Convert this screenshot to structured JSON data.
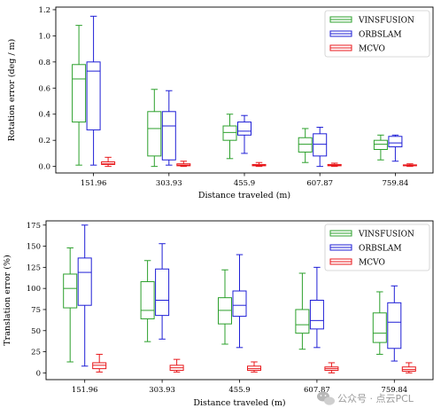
{
  "chart_data": [
    {
      "type": "box",
      "xlabel": "Distance traveled (m)",
      "ylabel": "Rotation error (deg / m)",
      "categories": [
        "151.96",
        "303.93",
        "455.9",
        "607.87",
        "759.84"
      ],
      "ylim": [
        -0.05,
        1.22
      ],
      "yticks": [
        "0.0",
        "0.2",
        "0.4",
        "0.6",
        "0.8",
        "1.0",
        "1.2"
      ],
      "legend_position": "top-right",
      "series": [
        {
          "name": "VINSFUSION",
          "color": "#2ca02c",
          "boxes": [
            {
              "whisker_low": 0.01,
              "q1": 0.34,
              "median": 0.67,
              "q3": 0.78,
              "whisker_high": 1.08
            },
            {
              "whisker_low": 0.0,
              "q1": 0.08,
              "median": 0.29,
              "q3": 0.42,
              "whisker_high": 0.59
            },
            {
              "whisker_low": 0.06,
              "q1": 0.2,
              "median": 0.26,
              "q3": 0.31,
              "whisker_high": 0.4
            },
            {
              "whisker_low": 0.03,
              "q1": 0.11,
              "median": 0.17,
              "q3": 0.22,
              "whisker_high": 0.29
            },
            {
              "whisker_low": 0.05,
              "q1": 0.13,
              "median": 0.17,
              "q3": 0.2,
              "whisker_high": 0.24
            }
          ]
        },
        {
          "name": "ORBSLAM",
          "color": "#1f1fd6",
          "boxes": [
            {
              "whisker_low": 0.01,
              "q1": 0.28,
              "median": 0.73,
              "q3": 0.8,
              "whisker_high": 1.15
            },
            {
              "whisker_low": 0.01,
              "q1": 0.05,
              "median": 0.31,
              "q3": 0.42,
              "whisker_high": 0.58
            },
            {
              "whisker_low": 0.1,
              "q1": 0.24,
              "median": 0.27,
              "q3": 0.34,
              "whisker_high": 0.39
            },
            {
              "whisker_low": 0.0,
              "q1": 0.08,
              "median": 0.17,
              "q3": 0.25,
              "whisker_high": 0.3
            },
            {
              "whisker_low": 0.04,
              "q1": 0.15,
              "median": 0.18,
              "q3": 0.23,
              "whisker_high": 0.24
            }
          ]
        },
        {
          "name": "MCVO",
          "color": "#e8191c",
          "boxes": [
            {
              "whisker_low": 0.0,
              "q1": 0.015,
              "median": 0.02,
              "q3": 0.035,
              "whisker_high": 0.07
            },
            {
              "whisker_low": 0.0,
              "q1": 0.005,
              "median": 0.01,
              "q3": 0.02,
              "whisker_high": 0.04
            },
            {
              "whisker_low": 0.0,
              "q1": 0.005,
              "median": 0.01,
              "q3": 0.015,
              "whisker_high": 0.03
            },
            {
              "whisker_low": 0.0,
              "q1": 0.005,
              "median": 0.008,
              "q3": 0.015,
              "whisker_high": 0.025
            },
            {
              "whisker_low": 0.0,
              "q1": 0.005,
              "median": 0.008,
              "q3": 0.012,
              "whisker_high": 0.02
            }
          ]
        }
      ]
    },
    {
      "type": "box",
      "xlabel": "Distance traveled (m)",
      "ylabel": "Translation error (%)",
      "categories": [
        "151.96",
        "303.93",
        "455.9",
        "607.87",
        "759.84"
      ],
      "ylim": [
        -8,
        180
      ],
      "yticks": [
        "0",
        "25",
        "50",
        "75",
        "100",
        "125",
        "150",
        "175"
      ],
      "legend_position": "top-right",
      "series": [
        {
          "name": "VINSFUSION",
          "color": "#2ca02c",
          "boxes": [
            {
              "whisker_low": 13,
              "q1": 77,
              "median": 100,
              "q3": 117,
              "whisker_high": 148
            },
            {
              "whisker_low": 37,
              "q1": 64,
              "median": 74,
              "q3": 108,
              "whisker_high": 133
            },
            {
              "whisker_low": 34,
              "q1": 58,
              "median": 74,
              "q3": 89,
              "whisker_high": 122
            },
            {
              "whisker_low": 28,
              "q1": 47,
              "median": 57,
              "q3": 75,
              "whisker_high": 118
            },
            {
              "whisker_low": 22,
              "q1": 36,
              "median": 47,
              "q3": 71,
              "whisker_high": 96
            }
          ]
        },
        {
          "name": "ORBSLAM",
          "color": "#1f1fd6",
          "boxes": [
            {
              "whisker_low": 8,
              "q1": 80,
              "median": 119,
              "q3": 136,
              "whisker_high": 175
            },
            {
              "whisker_low": 40,
              "q1": 68,
              "median": 86,
              "q3": 123,
              "whisker_high": 153
            },
            {
              "whisker_low": 30,
              "q1": 67,
              "median": 80,
              "q3": 97,
              "whisker_high": 140
            },
            {
              "whisker_low": 30,
              "q1": 52,
              "median": 62,
              "q3": 86,
              "whisker_high": 125
            },
            {
              "whisker_low": 14,
              "q1": 29,
              "median": 60,
              "q3": 83,
              "whisker_high": 103
            }
          ]
        },
        {
          "name": "MCVO",
          "color": "#e8191c",
          "boxes": [
            {
              "whisker_low": 1,
              "q1": 5,
              "median": 9,
              "q3": 12,
              "whisker_high": 22
            },
            {
              "whisker_low": 1,
              "q1": 3,
              "median": 6,
              "q3": 9,
              "whisker_high": 16
            },
            {
              "whisker_low": 1,
              "q1": 3,
              "median": 5,
              "q3": 8,
              "whisker_high": 13
            },
            {
              "whisker_low": 0,
              "q1": 3,
              "median": 5,
              "q3": 7,
              "whisker_high": 12
            },
            {
              "whisker_low": 0,
              "q1": 2,
              "median": 4,
              "q3": 7,
              "whisker_high": 12
            }
          ]
        }
      ]
    }
  ],
  "watermark": {
    "text": "公众号 · 点云PCL",
    "icon": "wechat-icon",
    "color": "#b8b8b8"
  }
}
